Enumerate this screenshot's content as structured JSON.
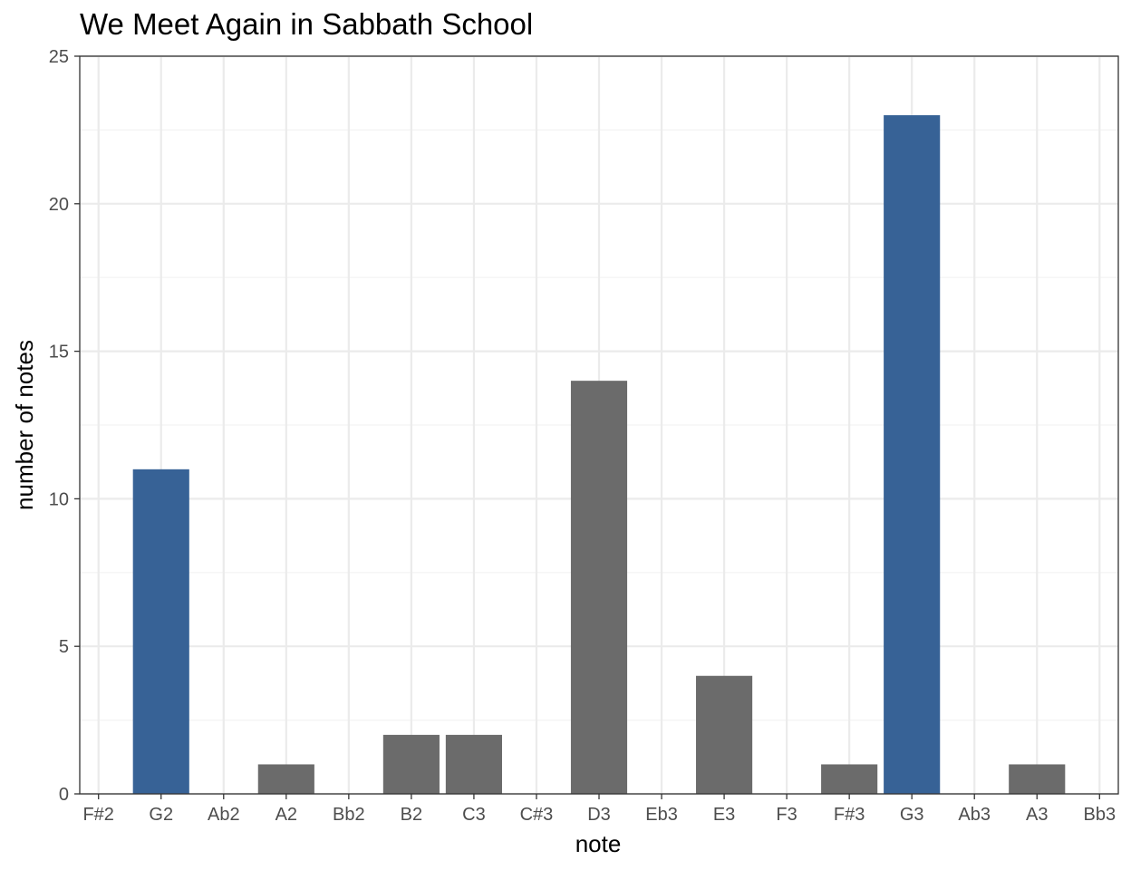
{
  "chart_data": {
    "type": "bar",
    "title": "We Meet Again in Sabbath School",
    "xlabel": "note",
    "ylabel": "number of notes",
    "categories": [
      "F#2",
      "G2",
      "Ab2",
      "A2",
      "Bb2",
      "B2",
      "C3",
      "C#3",
      "D3",
      "Eb3",
      "E3",
      "F3",
      "F#3",
      "G3",
      "Ab3",
      "A3",
      "Bb3"
    ],
    "values": [
      0,
      11,
      0,
      1,
      0,
      2,
      2,
      0,
      14,
      0,
      4,
      0,
      1,
      23,
      0,
      1,
      0
    ],
    "highlighted": [
      false,
      true,
      false,
      false,
      false,
      false,
      false,
      false,
      false,
      false,
      false,
      false,
      false,
      true,
      false,
      false,
      false
    ],
    "ylim": [
      0,
      25
    ],
    "yticks": [
      0,
      5,
      10,
      15,
      20,
      25
    ],
    "grid": true,
    "legend": "none",
    "colors": {
      "bar_default": "#6b6b6b",
      "bar_highlight": "#376296",
      "grid_major": "#ebebeb",
      "grid_minor": "#f3f3f3",
      "panel_border": "#333333",
      "tick_text": "#4d4d4d",
      "background": "#ffffff"
    }
  }
}
